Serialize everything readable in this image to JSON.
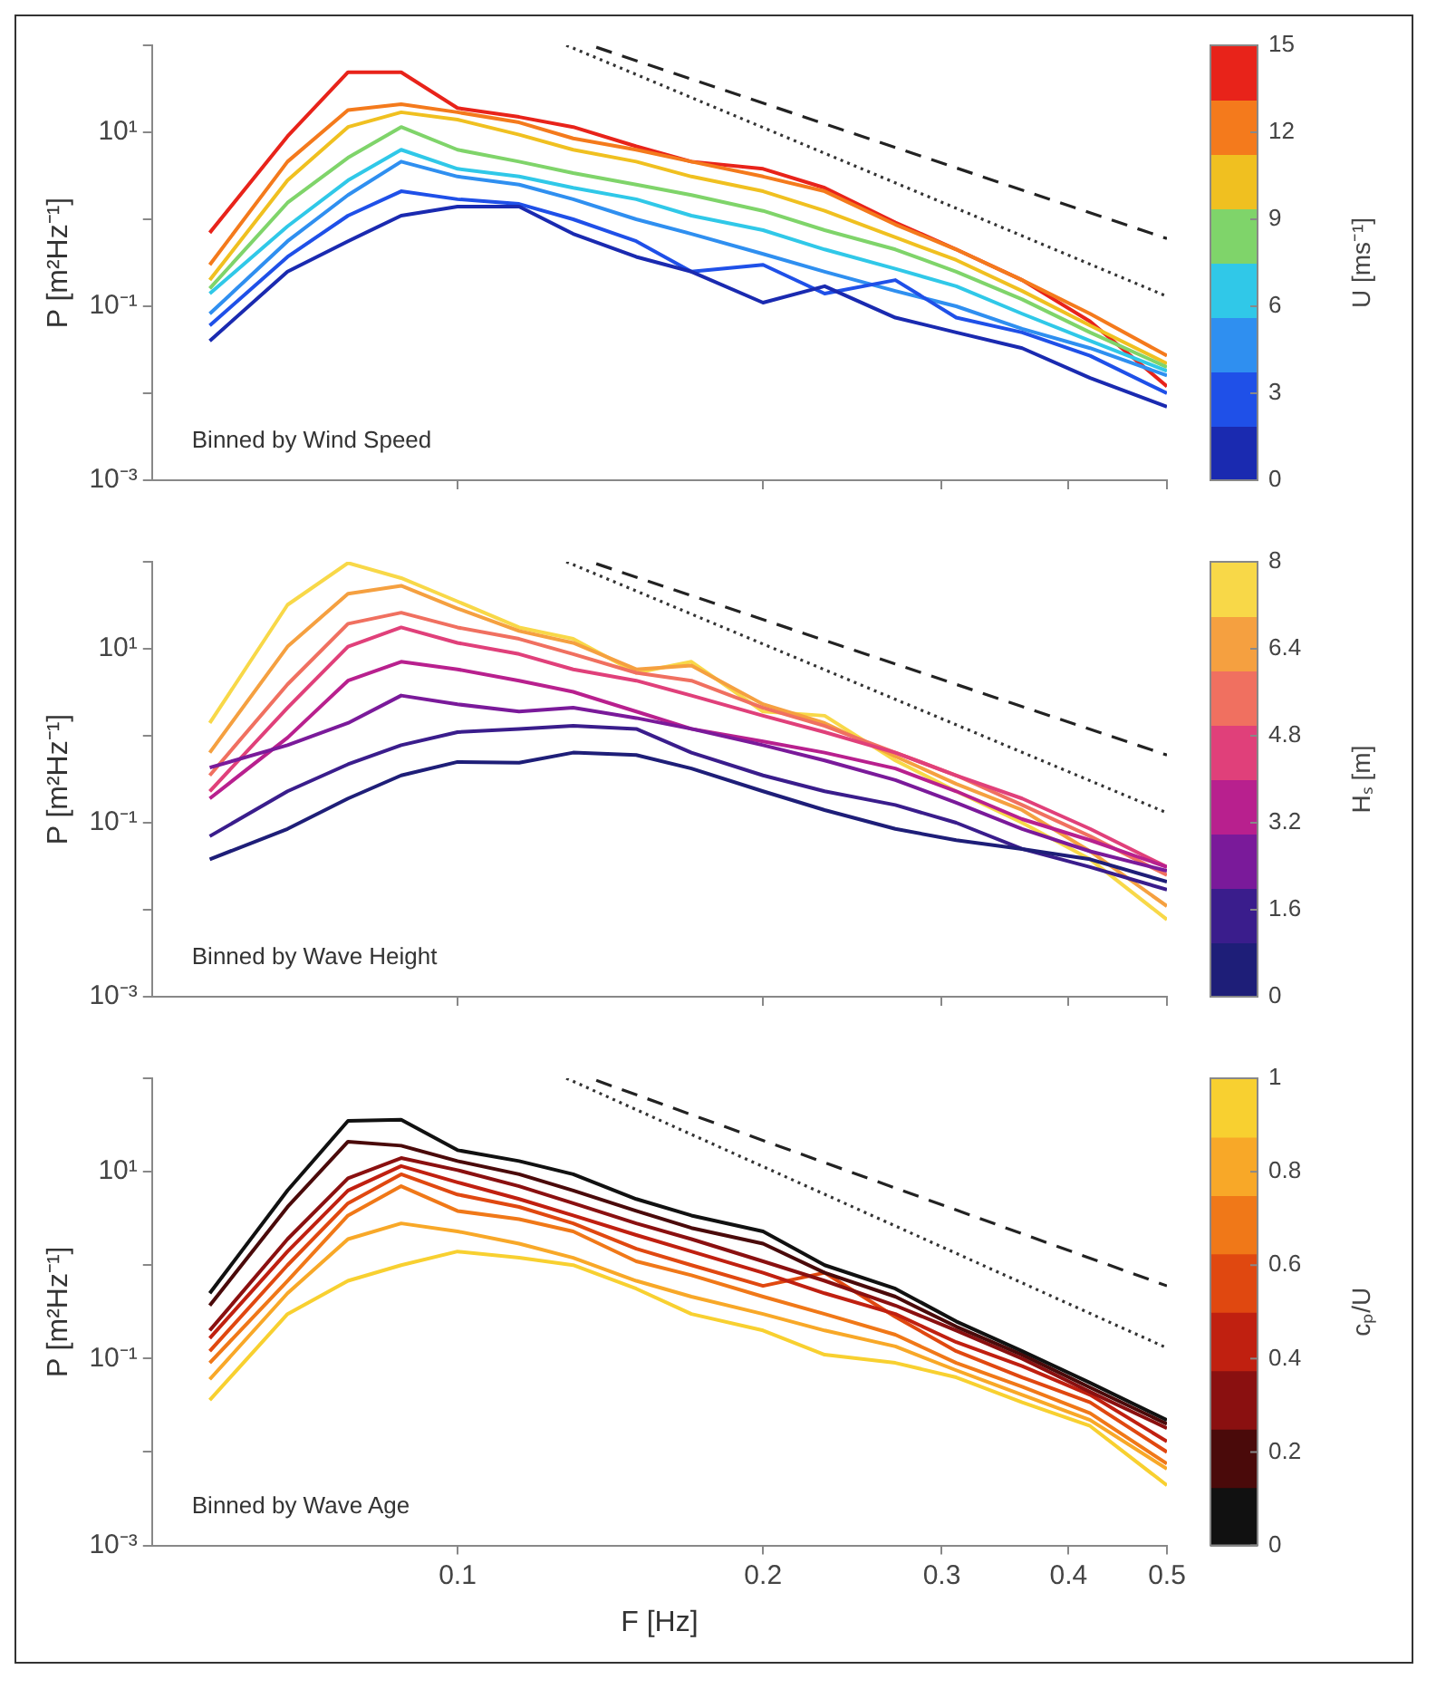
{
  "chart_data": [
    {
      "type": "line",
      "annotations": [
        "Binned by Wind Speed"
      ],
      "ylabel": "P [m²Hz⁻¹]",
      "clabel": "U [ms⁻¹]",
      "clim": [
        0,
        15
      ],
      "cticks": [
        0,
        3,
        6,
        9,
        12,
        15
      ],
      "log": "xy",
      "marker": "none",
      "tick_labels": "y",
      "xlim": [
        0.05,
        0.5
      ],
      "xticks": [
        0.1,
        0.2,
        0.3,
        0.4,
        0.5
      ],
      "ylim": [
        0.001,
        100
      ],
      "yticks": [
        {
          "value": 0.001,
          "label": "10⁻³"
        },
        {
          "value": 0.01,
          "label": null
        },
        {
          "value": 0.1,
          "label": "10⁻¹"
        },
        {
          "value": 1,
          "label": null
        },
        {
          "value": 10,
          "label": "10¹"
        },
        {
          "value": 100,
          "label": null
        }
      ],
      "x": [
        0.057,
        0.068,
        0.078,
        0.088,
        0.1,
        0.115,
        0.13,
        0.15,
        0.17,
        0.2,
        0.23,
        0.27,
        0.31,
        0.36,
        0.42,
        0.5
      ],
      "series": [
        {
          "color": "#1a2ab0",
          "values": [
            0.04,
            0.25,
            0.56,
            1.1,
            1.4,
            1.4,
            0.68,
            0.37,
            0.25,
            0.11,
            0.17,
            0.074,
            0.05,
            0.033,
            0.015,
            0.007
          ]
        },
        {
          "color": "#1f50e8",
          "values": [
            0.06,
            0.37,
            1.1,
            2.1,
            1.7,
            1.5,
            1.0,
            0.56,
            0.25,
            0.3,
            0.14,
            0.2,
            0.074,
            0.05,
            0.027,
            0.01
          ]
        },
        {
          "color": "#2f8ff0",
          "values": [
            0.082,
            0.56,
            1.9,
            4.6,
            3.1,
            2.5,
            1.7,
            1.0,
            0.68,
            0.4,
            0.25,
            0.15,
            0.1,
            0.055,
            0.033,
            0.016
          ]
        },
        {
          "color": "#30c8e8",
          "values": [
            0.14,
            0.83,
            2.8,
            6.3,
            3.8,
            3.1,
            2.3,
            1.7,
            1.1,
            0.75,
            0.45,
            0.27,
            0.17,
            0.082,
            0.04,
            0.018
          ]
        },
        {
          "color": "#7fd46a",
          "values": [
            0.16,
            1.55,
            5.1,
            11.5,
            6.3,
            4.6,
            3.4,
            2.5,
            1.9,
            1.25,
            0.75,
            0.45,
            0.25,
            0.12,
            0.05,
            0.02
          ]
        },
        {
          "color": "#f0c020",
          "values": [
            0.2,
            2.8,
            11.5,
            17,
            14,
            9.4,
            6.3,
            4.6,
            3.1,
            2.1,
            1.25,
            0.62,
            0.34,
            0.15,
            0.06,
            0.022
          ]
        },
        {
          "color": "#f47a1c",
          "values": [
            0.3,
            4.6,
            18,
            21,
            17,
            13,
            8.5,
            6.3,
            4.6,
            3.1,
            2.1,
            0.87,
            0.45,
            0.2,
            0.082,
            0.027
          ]
        },
        {
          "color": "#e8231a",
          "values": [
            0.7,
            9,
            49,
            49,
            19,
            15,
            11.5,
            6.9,
            4.6,
            3.8,
            2.3,
            0.92,
            0.45,
            0.2,
            0.067,
            0.012
          ]
        },
        {
          "type": "line",
          "line_style": "dotted",
          "color": "#333333",
          "x": [
            0.128,
            0.5
          ],
          "values": [
            100,
            0.13
          ]
        },
        {
          "type": "line",
          "line_style": "dashed",
          "color": "#222222",
          "x": [
            0.137,
            0.5
          ],
          "values": [
            95,
            0.6
          ]
        }
      ]
    },
    {
      "type": "line",
      "annotations": [
        "Binned by Wave Height"
      ],
      "ylabel": "P [m²Hz⁻¹]",
      "clabel": "Hₛ [m]",
      "clim": [
        0,
        8
      ],
      "cticks": [
        0,
        1.6,
        3.2,
        4.8,
        6.4,
        8
      ],
      "log": "xy",
      "marker": "none",
      "tick_labels": "y",
      "xlim": [
        0.05,
        0.5
      ],
      "xticks": [
        0.1,
        0.2,
        0.3,
        0.4,
        0.5
      ],
      "ylim": [
        0.001,
        100
      ],
      "yticks": [
        {
          "value": 0.001,
          "label": "10⁻³"
        },
        {
          "value": 0.01,
          "label": null
        },
        {
          "value": 0.1,
          "label": "10⁻¹"
        },
        {
          "value": 1,
          "label": null
        },
        {
          "value": 10,
          "label": "10¹"
        },
        {
          "value": 100,
          "label": null
        }
      ],
      "x": [
        0.057,
        0.068,
        0.078,
        0.088,
        0.1,
        0.115,
        0.13,
        0.15,
        0.17,
        0.2,
        0.23,
        0.27,
        0.31,
        0.36,
        0.42,
        0.5
      ],
      "series": [
        {
          "color": "#1e1e78",
          "values": [
            0.038,
            0.085,
            0.19,
            0.35,
            0.5,
            0.49,
            0.64,
            0.6,
            0.42,
            0.23,
            0.14,
            0.085,
            0.063,
            0.05,
            0.038,
            0.021
          ]
        },
        {
          "color": "#3a1d8c",
          "values": [
            0.07,
            0.23,
            0.47,
            0.78,
            1.1,
            1.2,
            1.3,
            1.2,
            0.64,
            0.35,
            0.23,
            0.16,
            0.1,
            0.05,
            0.031,
            0.017
          ]
        },
        {
          "color": "#7a1a9a",
          "values": [
            0.43,
            0.78,
            1.4,
            2.9,
            2.3,
            1.9,
            2.1,
            1.6,
            1.2,
            0.78,
            0.52,
            0.31,
            0.17,
            0.085,
            0.047,
            0.028
          ]
        },
        {
          "color": "#b8208e",
          "values": [
            0.19,
            0.95,
            4.3,
            7.1,
            5.8,
            4.3,
            3.2,
            1.9,
            1.2,
            0.86,
            0.64,
            0.42,
            0.23,
            0.11,
            0.063,
            0.031
          ]
        },
        {
          "color": "#e0407a",
          "values": [
            0.23,
            2.1,
            10.6,
            17.6,
            11.7,
            8.7,
            5.8,
            4.3,
            2.9,
            1.7,
            1.1,
            0.64,
            0.35,
            0.19,
            0.085,
            0.031
          ]
        },
        {
          "color": "#f07060",
          "values": [
            0.35,
            3.9,
            19.4,
            26,
            17.6,
            13,
            8.7,
            5.3,
            4.3,
            2.1,
            1.3,
            0.64,
            0.35,
            0.16,
            0.07,
            0.025
          ]
        },
        {
          "color": "#f5a040",
          "values": [
            0.64,
            10.6,
            43,
            53,
            29,
            16,
            11.7,
            5.8,
            6.4,
            2.3,
            1.4,
            0.58,
            0.28,
            0.14,
            0.047,
            0.011
          ]
        },
        {
          "color": "#f8d848",
          "values": [
            1.4,
            32,
            97,
            65,
            35,
            17.6,
            13,
            5.3,
            7.1,
            1.9,
            1.7,
            0.52,
            0.23,
            0.1,
            0.038,
            0.0077
          ]
        },
        {
          "type": "line",
          "line_style": "dotted",
          "color": "#333333",
          "x": [
            0.128,
            0.5
          ],
          "values": [
            100,
            0.13
          ]
        },
        {
          "type": "line",
          "line_style": "dashed",
          "color": "#222222",
          "x": [
            0.137,
            0.5
          ],
          "values": [
            95,
            0.6
          ]
        }
      ]
    },
    {
      "type": "line",
      "annotations": [
        "Binned by Wave Age"
      ],
      "xlabel": "F [Hz]",
      "ylabel": "P [m²Hz⁻¹]",
      "clabel": "cₚ/U",
      "clim": [
        0,
        1
      ],
      "cticks": [
        0,
        0.2,
        0.4,
        0.6,
        0.8,
        1
      ],
      "log": "xy",
      "marker": "none",
      "xlim": [
        0.05,
        0.5
      ],
      "xticks": [
        0.1,
        0.2,
        0.3,
        0.4,
        0.5
      ],
      "ylim": [
        0.001,
        100
      ],
      "yticks": [
        {
          "value": 0.001,
          "label": "10⁻³"
        },
        {
          "value": 0.01,
          "label": null
        },
        {
          "value": 0.1,
          "label": "10⁻¹"
        },
        {
          "value": 1,
          "label": null
        },
        {
          "value": 10,
          "label": "10¹"
        },
        {
          "value": 100,
          "label": null
        }
      ],
      "x": [
        0.057,
        0.068,
        0.078,
        0.088,
        0.1,
        0.115,
        0.13,
        0.15,
        0.17,
        0.2,
        0.23,
        0.27,
        0.31,
        0.36,
        0.42,
        0.5
      ],
      "series": [
        {
          "color": "#111111",
          "values": [
            0.5,
            6.3,
            35,
            36,
            17,
            13,
            9.4,
            5.1,
            3.4,
            2.3,
            1.0,
            0.56,
            0.25,
            0.12,
            0.055,
            0.022
          ]
        },
        {
          "color": "#4a0a0a",
          "values": [
            0.37,
            4.2,
            21,
            19,
            13,
            9.4,
            6.3,
            3.8,
            2.5,
            1.7,
            0.83,
            0.46,
            0.22,
            0.11,
            0.049,
            0.02
          ]
        },
        {
          "color": "#8a1010",
          "values": [
            0.2,
            1.9,
            8.5,
            14,
            10.4,
            7,
            4.6,
            2.8,
            1.9,
            1.1,
            0.68,
            0.37,
            0.2,
            0.1,
            0.044,
            0.018
          ]
        },
        {
          "color": "#c02010",
          "values": [
            0.165,
            1.4,
            6.3,
            11.5,
            7.7,
            5.1,
            3.4,
            2.1,
            1.4,
            0.83,
            0.5,
            0.3,
            0.15,
            0.083,
            0.041,
            0.013
          ]
        },
        {
          "color": "#e04810",
          "values": [
            0.12,
            1.0,
            4.6,
            9.4,
            5.7,
            4.2,
            2.8,
            1.5,
            1.0,
            0.6,
            0.83,
            0.28,
            0.12,
            0.063,
            0.034,
            0.01
          ]
        },
        {
          "color": "#f07818",
          "values": [
            0.09,
            0.68,
            3.4,
            7,
            3.8,
            3.1,
            2.3,
            1.1,
            0.78,
            0.46,
            0.3,
            0.18,
            0.09,
            0.05,
            0.026,
            0.0075
          ]
        },
        {
          "color": "#f8a828",
          "values": [
            0.06,
            0.5,
            1.9,
            2.8,
            2.3,
            1.7,
            1.2,
            0.68,
            0.46,
            0.3,
            0.2,
            0.135,
            0.075,
            0.041,
            0.022,
            0.0066
          ]
        },
        {
          "color": "#f8d030",
          "values": [
            0.036,
            0.3,
            0.68,
            1.0,
            1.4,
            1.2,
            1.0,
            0.56,
            0.3,
            0.2,
            0.11,
            0.09,
            0.063,
            0.034,
            0.019,
            0.0044
          ]
        },
        {
          "type": "line",
          "line_style": "dotted",
          "color": "#333333",
          "x": [
            0.128,
            0.5
          ],
          "values": [
            100,
            0.13
          ]
        },
        {
          "type": "line",
          "line_style": "dashed",
          "color": "#222222",
          "x": [
            0.137,
            0.5
          ],
          "values": [
            95,
            0.6
          ]
        }
      ]
    }
  ]
}
